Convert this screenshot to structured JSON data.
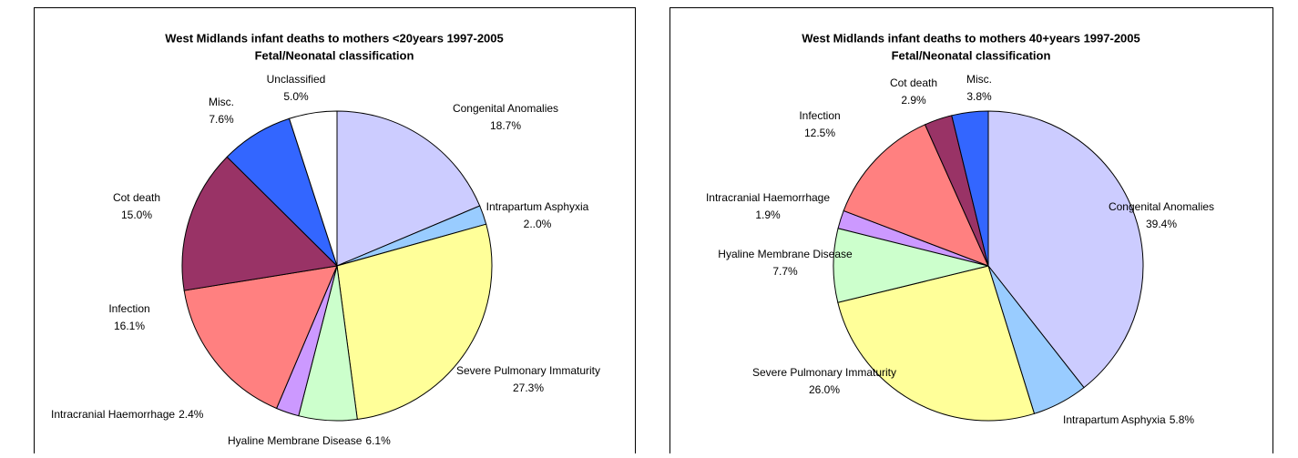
{
  "chart_data": [
    {
      "type": "pie",
      "title": "West Midlands infant deaths to mothers <20years 1997-2005",
      "subtitle": "Fetal/Neonatal classification",
      "categories": [
        "Congenital Anomalies",
        "Intrapartum Asphyxia",
        "Severe Pulmonary Immaturity",
        "Hyaline Membrane Disease",
        "Intracranial Haemorrhage",
        "Infection",
        "Cot death",
        "Misc.",
        "Unclassified"
      ],
      "values": [
        18.7,
        2.0,
        27.3,
        6.1,
        2.4,
        16.1,
        15.0,
        7.6,
        5.0
      ],
      "value_labels": [
        "18.7%",
        "2..0%",
        "27.3%",
        "6.1%",
        "2.4%",
        "16.1%",
        "15.0%",
        "7.6%",
        "5.0%"
      ],
      "colors": [
        "#ccccff",
        "#99ccff",
        "#ffff99",
        "#ccffcc",
        "#cc99ff",
        "#ff8080",
        "#993366",
        "#3366ff",
        "#ffffff"
      ]
    },
    {
      "type": "pie",
      "title": "West Midlands infant deaths to mothers 40+years 1997-2005",
      "subtitle": "Fetal/Neonatal classification",
      "categories": [
        "Congenital Anomalies",
        "Intrapartum Asphyxia",
        "Severe Pulmonary Immaturity",
        "Hyaline Membrane Disease",
        "Intracranial Haemorrhage",
        "Infection",
        "Cot death",
        "Misc."
      ],
      "values": [
        39.4,
        5.8,
        26.0,
        7.7,
        1.9,
        12.5,
        2.9,
        3.8
      ],
      "value_labels": [
        "39.4%",
        "5.8%",
        "26.0%",
        "7.7%",
        "1.9%",
        "12.5%",
        "2.9%",
        "3.8%"
      ],
      "colors": [
        "#ccccff",
        "#99ccff",
        "#ffff99",
        "#ccffcc",
        "#cc99ff",
        "#ff8080",
        "#993366",
        "#3366ff"
      ]
    }
  ]
}
